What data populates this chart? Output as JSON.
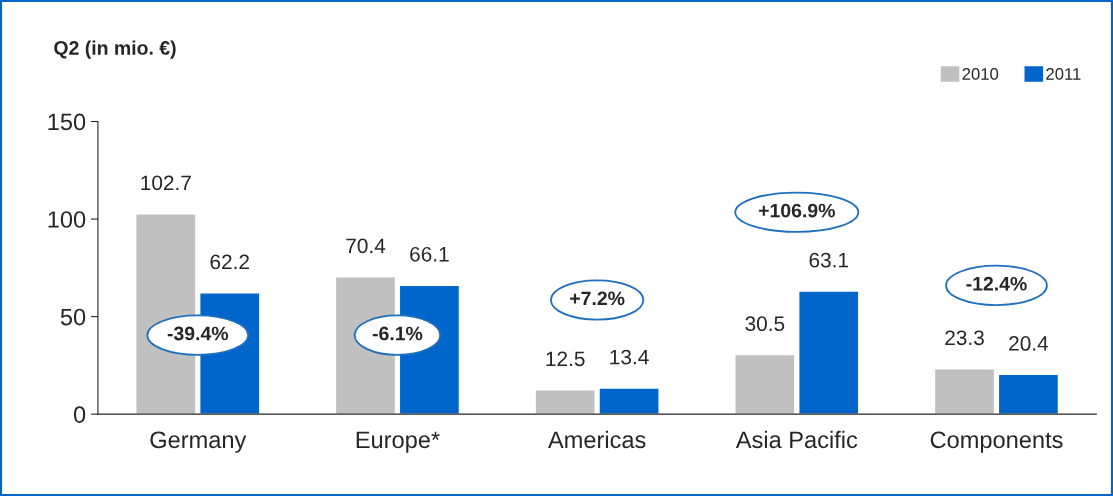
{
  "chart_data": {
    "type": "bar",
    "title": "Q2 (in mio. €)",
    "categories": [
      "Germany",
      "Europe*",
      "Americas",
      "Asia Pacific",
      "Components"
    ],
    "series": [
      {
        "name": "2010",
        "color": "#c0c0c0",
        "values": [
          102.7,
          70.4,
          12.5,
          30.5,
          23.3
        ]
      },
      {
        "name": "2011",
        "color": "#0066cc",
        "values": [
          62.2,
          66.1,
          13.4,
          63.1,
          20.4
        ]
      }
    ],
    "ylim": [
      0,
      150
    ],
    "yticks": [
      0,
      50,
      100,
      150
    ],
    "grid": false,
    "legend": "top right",
    "data_labels": true,
    "annotations": [
      "-39.4%",
      "-6.1%",
      "+7.2%",
      "+106.9%",
      "-12.4%"
    ]
  }
}
